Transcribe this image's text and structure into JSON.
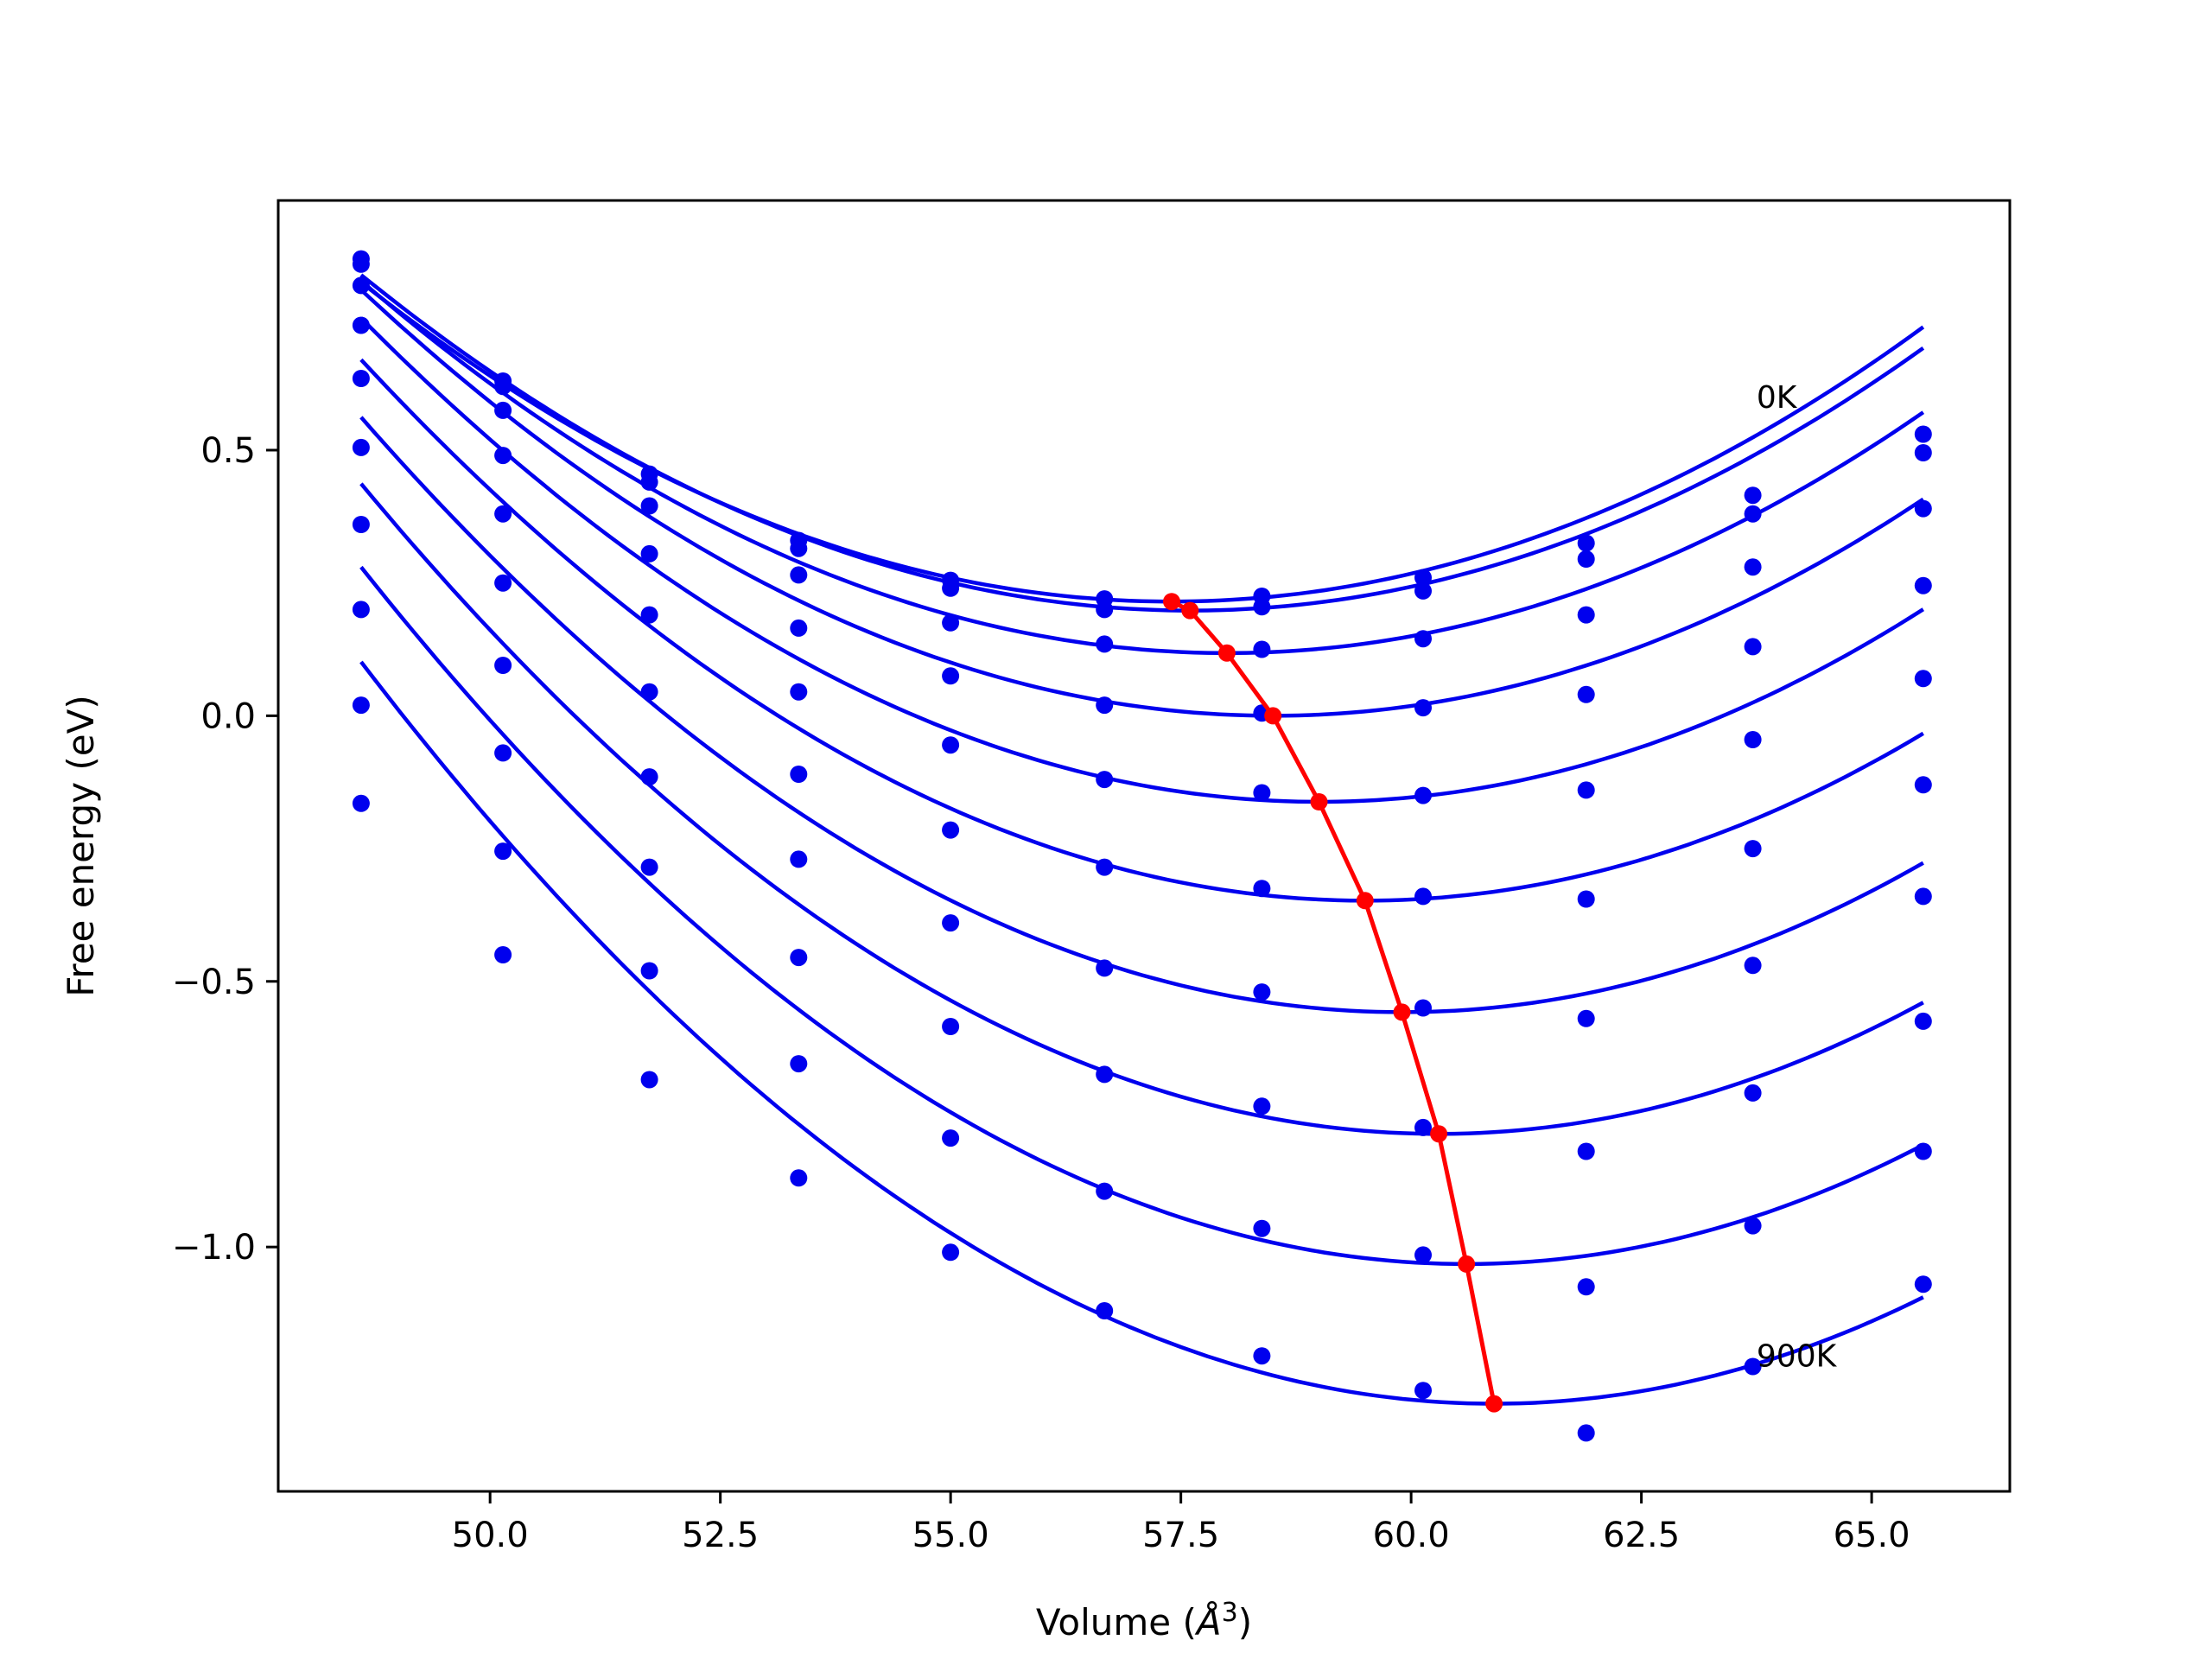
{
  "chart_data": {
    "type": "line",
    "xlabel_prefix": "Volume (",
    "xlabel_symbol": "Å",
    "xlabel_power": "3",
    "xlabel_suffix": ")",
    "ylabel": "Free energy (eV)",
    "xlim": [
      47.7,
      66.5
    ],
    "ylim": [
      -1.46,
      0.97
    ],
    "xticks": [
      50.0,
      52.5,
      55.0,
      57.5,
      60.0,
      62.5,
      65.0
    ],
    "xtick_labels": [
      "50.0",
      "52.5",
      "55.0",
      "57.5",
      "60.0",
      "62.5",
      "65.0"
    ],
    "yticks": [
      0.5,
      0.0,
      -0.5,
      -1.0
    ],
    "ytick_labels": [
      "0.5",
      "0.0",
      "−0.5",
      "−1.0"
    ],
    "grid": false,
    "colors": {
      "fit": "#0000ee",
      "points": "#0000ee",
      "minima": "#ff0000",
      "axes": "#000000"
    },
    "volumes": [
      48.6,
      50.14,
      51.73,
      53.35,
      55.0,
      56.67,
      58.38,
      60.13,
      61.9,
      63.71,
      65.56
    ],
    "series": [
      {
        "fit": [
          0.215,
          57.4,
          0.00776
        ],
        "points": [
          0.86,
          0.63,
          0.455,
          0.33,
          0.255,
          0.22,
          0.225,
          0.26,
          0.325,
          0.415,
          0.53
        ]
      },
      {
        "fit": [
          0.198,
          57.6,
          0.0078
        ],
        "points": [
          0.85,
          0.62,
          0.44,
          0.315,
          0.24,
          0.2,
          0.205,
          0.235,
          0.295,
          0.38,
          0.495
        ]
      },
      {
        "fit": [
          0.118,
          58.0,
          0.00793
        ],
        "points": [
          0.81,
          0.575,
          0.395,
          0.265,
          0.175,
          0.135,
          0.125,
          0.145,
          0.19,
          0.28,
          0.39
        ]
      },
      {
        "fit": [
          0.0,
          58.5,
          0.00818
        ],
        "points": [
          0.735,
          0.49,
          0.305,
          0.165,
          0.075,
          0.02,
          0.005,
          0.015,
          0.04,
          0.13,
          0.245
        ]
      },
      {
        "fit": [
          -0.162,
          59.0,
          0.00842
        ],
        "points": [
          0.635,
          0.38,
          0.19,
          0.045,
          -0.055,
          -0.12,
          -0.145,
          -0.15,
          -0.14,
          -0.045,
          0.07
        ]
      },
      {
        "fit": [
          -0.348,
          59.5,
          0.00857
        ],
        "points": [
          0.505,
          0.25,
          0.045,
          -0.11,
          -0.215,
          -0.285,
          -0.325,
          -0.34,
          -0.345,
          -0.25,
          -0.13
        ]
      },
      {
        "fit": [
          -0.558,
          59.9,
          0.00877
        ],
        "points": [
          0.36,
          0.095,
          -0.115,
          -0.27,
          -0.39,
          -0.475,
          -0.52,
          -0.55,
          -0.57,
          -0.47,
          -0.34
        ]
      },
      {
        "fit": [
          -0.787,
          60.3,
          0.00894
        ],
        "points": [
          0.2,
          -0.07,
          -0.285,
          -0.455,
          -0.585,
          -0.675,
          -0.735,
          -0.775,
          -0.82,
          -0.71,
          -0.575
        ]
      },
      {
        "fit": [
          -1.032,
          60.6,
          0.00911
        ],
        "points": [
          0.02,
          -0.255,
          -0.48,
          -0.655,
          -0.795,
          -0.895,
          -0.965,
          -1.015,
          -1.075,
          -0.96,
          -0.82
        ]
      },
      {
        "fit": [
          -1.295,
          60.9,
          0.00923
        ],
        "points": [
          -0.165,
          -0.45,
          -0.685,
          -0.87,
          -1.01,
          -1.12,
          -1.205,
          -1.27,
          -1.35,
          -1.225,
          -1.07
        ]
      }
    ],
    "minima_line": {
      "x": [
        57.4,
        57.6,
        58.0,
        58.5,
        59.0,
        59.5,
        59.9,
        60.3,
        60.6,
        60.9
      ],
      "y": [
        0.215,
        0.198,
        0.118,
        0.0,
        -0.162,
        -0.348,
        -0.558,
        -0.787,
        -1.032,
        -1.295
      ]
    },
    "annotations": [
      {
        "text": "0K",
        "x": 63.75,
        "y": 0.58
      },
      {
        "text": "900K",
        "x": 63.75,
        "y": -1.225
      }
    ]
  }
}
